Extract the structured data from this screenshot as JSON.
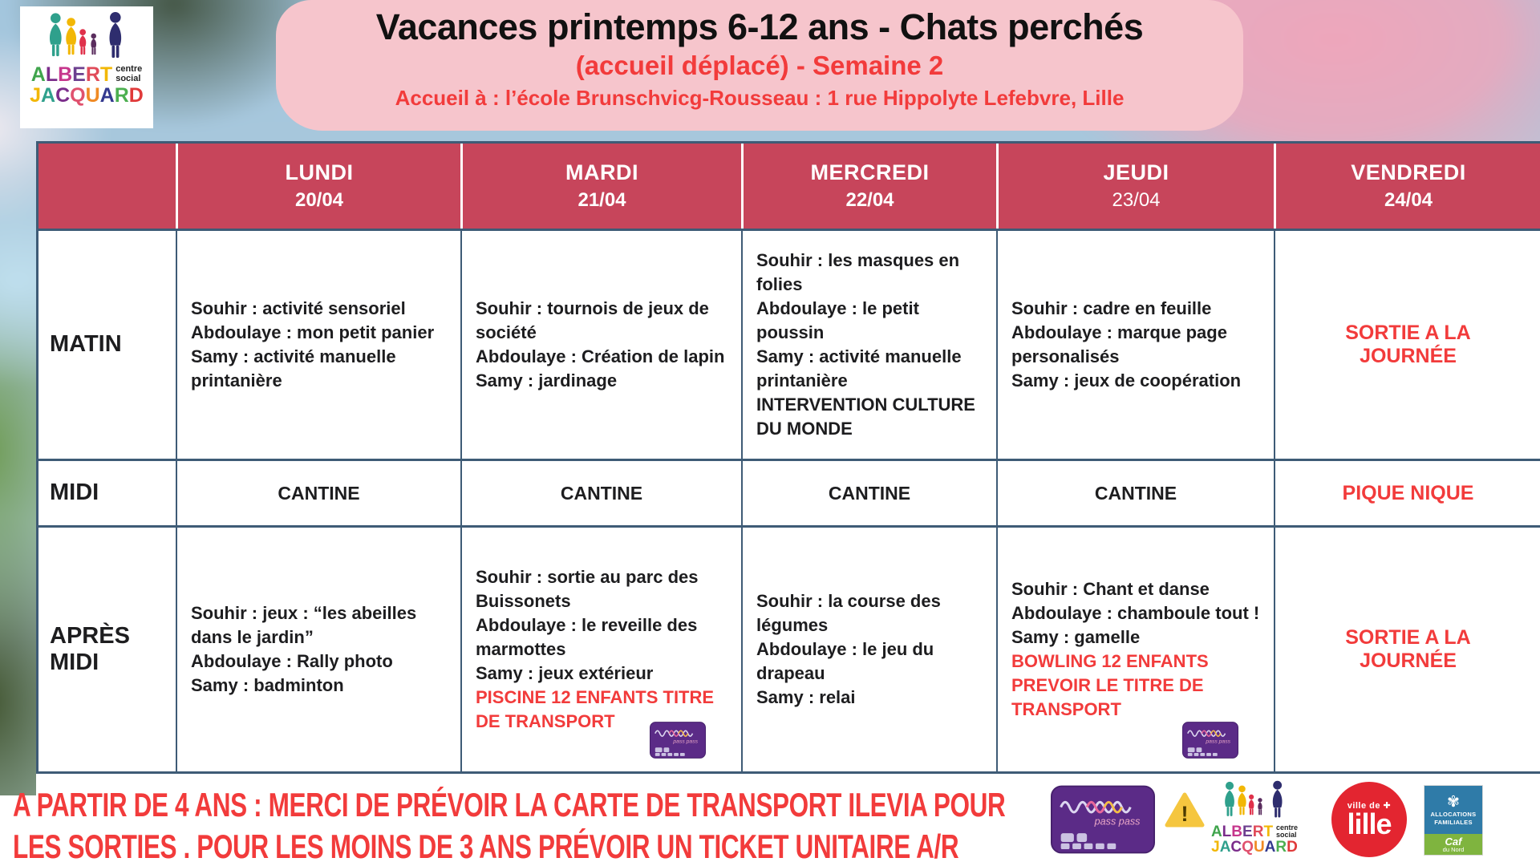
{
  "header": {
    "title": "Vacances printemps 6-12 ans - Chats perchés",
    "subtitle": "(accueil déplacé) - Semaine 2",
    "location": "Accueil à : l’école Brunschvicg-Rousseau : 1 rue Hippolyte Lefebvre, Lille"
  },
  "logo": {
    "org_line1": "ALBERT",
    "org_line2": "JACQUARD",
    "dept_line1": "centre",
    "dept_line2": "social"
  },
  "passpass": {
    "brand": "pass pass"
  },
  "table": {
    "days": [
      {
        "name": "LUNDI",
        "date": "20/04"
      },
      {
        "name": "MARDI",
        "date": "21/04"
      },
      {
        "name": "MERCREDI",
        "date": "22/04"
      },
      {
        "name": "JEUDI",
        "date": "23/04"
      },
      {
        "name": "VENDREDI",
        "date": "24/04"
      }
    ],
    "rows": [
      {
        "label": "MATIN",
        "cells": [
          {
            "kind": "activities",
            "lines": [
              {
                "text": "Souhir : activité sensoriel"
              },
              {
                "text": "Abdoulaye : mon petit panier"
              },
              {
                "text": "Samy : activité manuelle printanière"
              }
            ]
          },
          {
            "kind": "activities",
            "lines": [
              {
                "text": "Souhir : tournois de jeux de société"
              },
              {
                "text": "Abdoulaye : Création de lapin"
              },
              {
                "text": "Samy : jardinage"
              }
            ]
          },
          {
            "kind": "activities",
            "lines": [
              {
                "text": "Souhir : les masques en folies"
              },
              {
                "text": "Abdoulaye : le petit poussin"
              },
              {
                "text": "Samy : activité manuelle printanière"
              },
              {
                "text": "INTERVENTION CULTURE DU MONDE"
              }
            ]
          },
          {
            "kind": "activities",
            "lines": [
              {
                "text": "Souhir : cadre en feuille"
              },
              {
                "text": "Abdoulaye : marque page personalisés"
              },
              {
                "text": "Samy : jeux de coopération"
              }
            ]
          },
          {
            "kind": "highlight",
            "text": "SORTIE A LA JOURNÉE"
          }
        ]
      },
      {
        "label": "MIDI",
        "cells": [
          {
            "kind": "center",
            "text": "CANTINE"
          },
          {
            "kind": "center",
            "text": "CANTINE"
          },
          {
            "kind": "center",
            "text": "CANTINE"
          },
          {
            "kind": "center",
            "text": "CANTINE"
          },
          {
            "kind": "highlight",
            "text": "PIQUE NIQUE"
          }
        ]
      },
      {
        "label": "APRÈS MIDI",
        "cells": [
          {
            "kind": "activities",
            "lines": [
              {
                "text": "Souhir : jeux : “les abeilles dans le jardin”"
              },
              {
                "text": "Abdoulaye : Rally photo"
              },
              {
                "text": "Samy : badminton"
              }
            ]
          },
          {
            "kind": "activities",
            "pass_card": true,
            "lines": [
              {
                "text": "Souhir : sortie au parc des Buissonets"
              },
              {
                "text": "Abdoulaye : le reveille des marmottes"
              },
              {
                "text": "Samy : jeux extérieur"
              },
              {
                "text": "PISCINE 12 ENFANTS TITRE DE TRANSPORT",
                "color": "red"
              }
            ]
          },
          {
            "kind": "activities",
            "lines": [
              {
                "text": "Souhir : la course des légumes"
              },
              {
                "text": "Abdoulaye : le jeu du drapeau"
              },
              {
                "text": "Samy : relai"
              }
            ]
          },
          {
            "kind": "activities",
            "pass_card": true,
            "lines": [
              {
                "text": "Souhir : Chant et danse"
              },
              {
                "text": "Abdoulaye : chamboule tout !"
              },
              {
                "text": "Samy : gamelle"
              },
              {
                "text": "BOWLING 12 ENFANTS PREVOIR LE TITRE DE TRANSPORT",
                "color": "red"
              }
            ]
          },
          {
            "kind": "highlight",
            "text": "SORTIE A LA JOURNÉE"
          }
        ]
      }
    ]
  },
  "footer": {
    "notice_lines": [
      "A PARTIR DE 4 ANS : MERCI DE PRÉVOIR LA CARTE DE TRANSPORT ILEVIA POUR",
      "LES SORTIES .  POUR LES MOINS DE 3 ANS PRÉVOIR UN TICKET UNITAIRE A/R"
    ],
    "warning_symbol": "!",
    "lille": {
      "top": "ville de ✚",
      "name": "lille"
    },
    "caf": {
      "org_line1": "ALLOCATIONS",
      "org_line2": "FAMILIALES",
      "name": "Caf",
      "sub": "du Nord"
    }
  },
  "colors": {
    "header_red": "#C7455B",
    "banner_pink": "#F6C5CC",
    "accent_red": "#F23B3B",
    "table_border": "#3E5B76",
    "passpass_purple": "#5B2B87",
    "lille_red": "#E32530",
    "caf_blue": "#2F7BA8",
    "caf_green": "#7FB43F",
    "warning_yellow": "#F5C63F"
  }
}
